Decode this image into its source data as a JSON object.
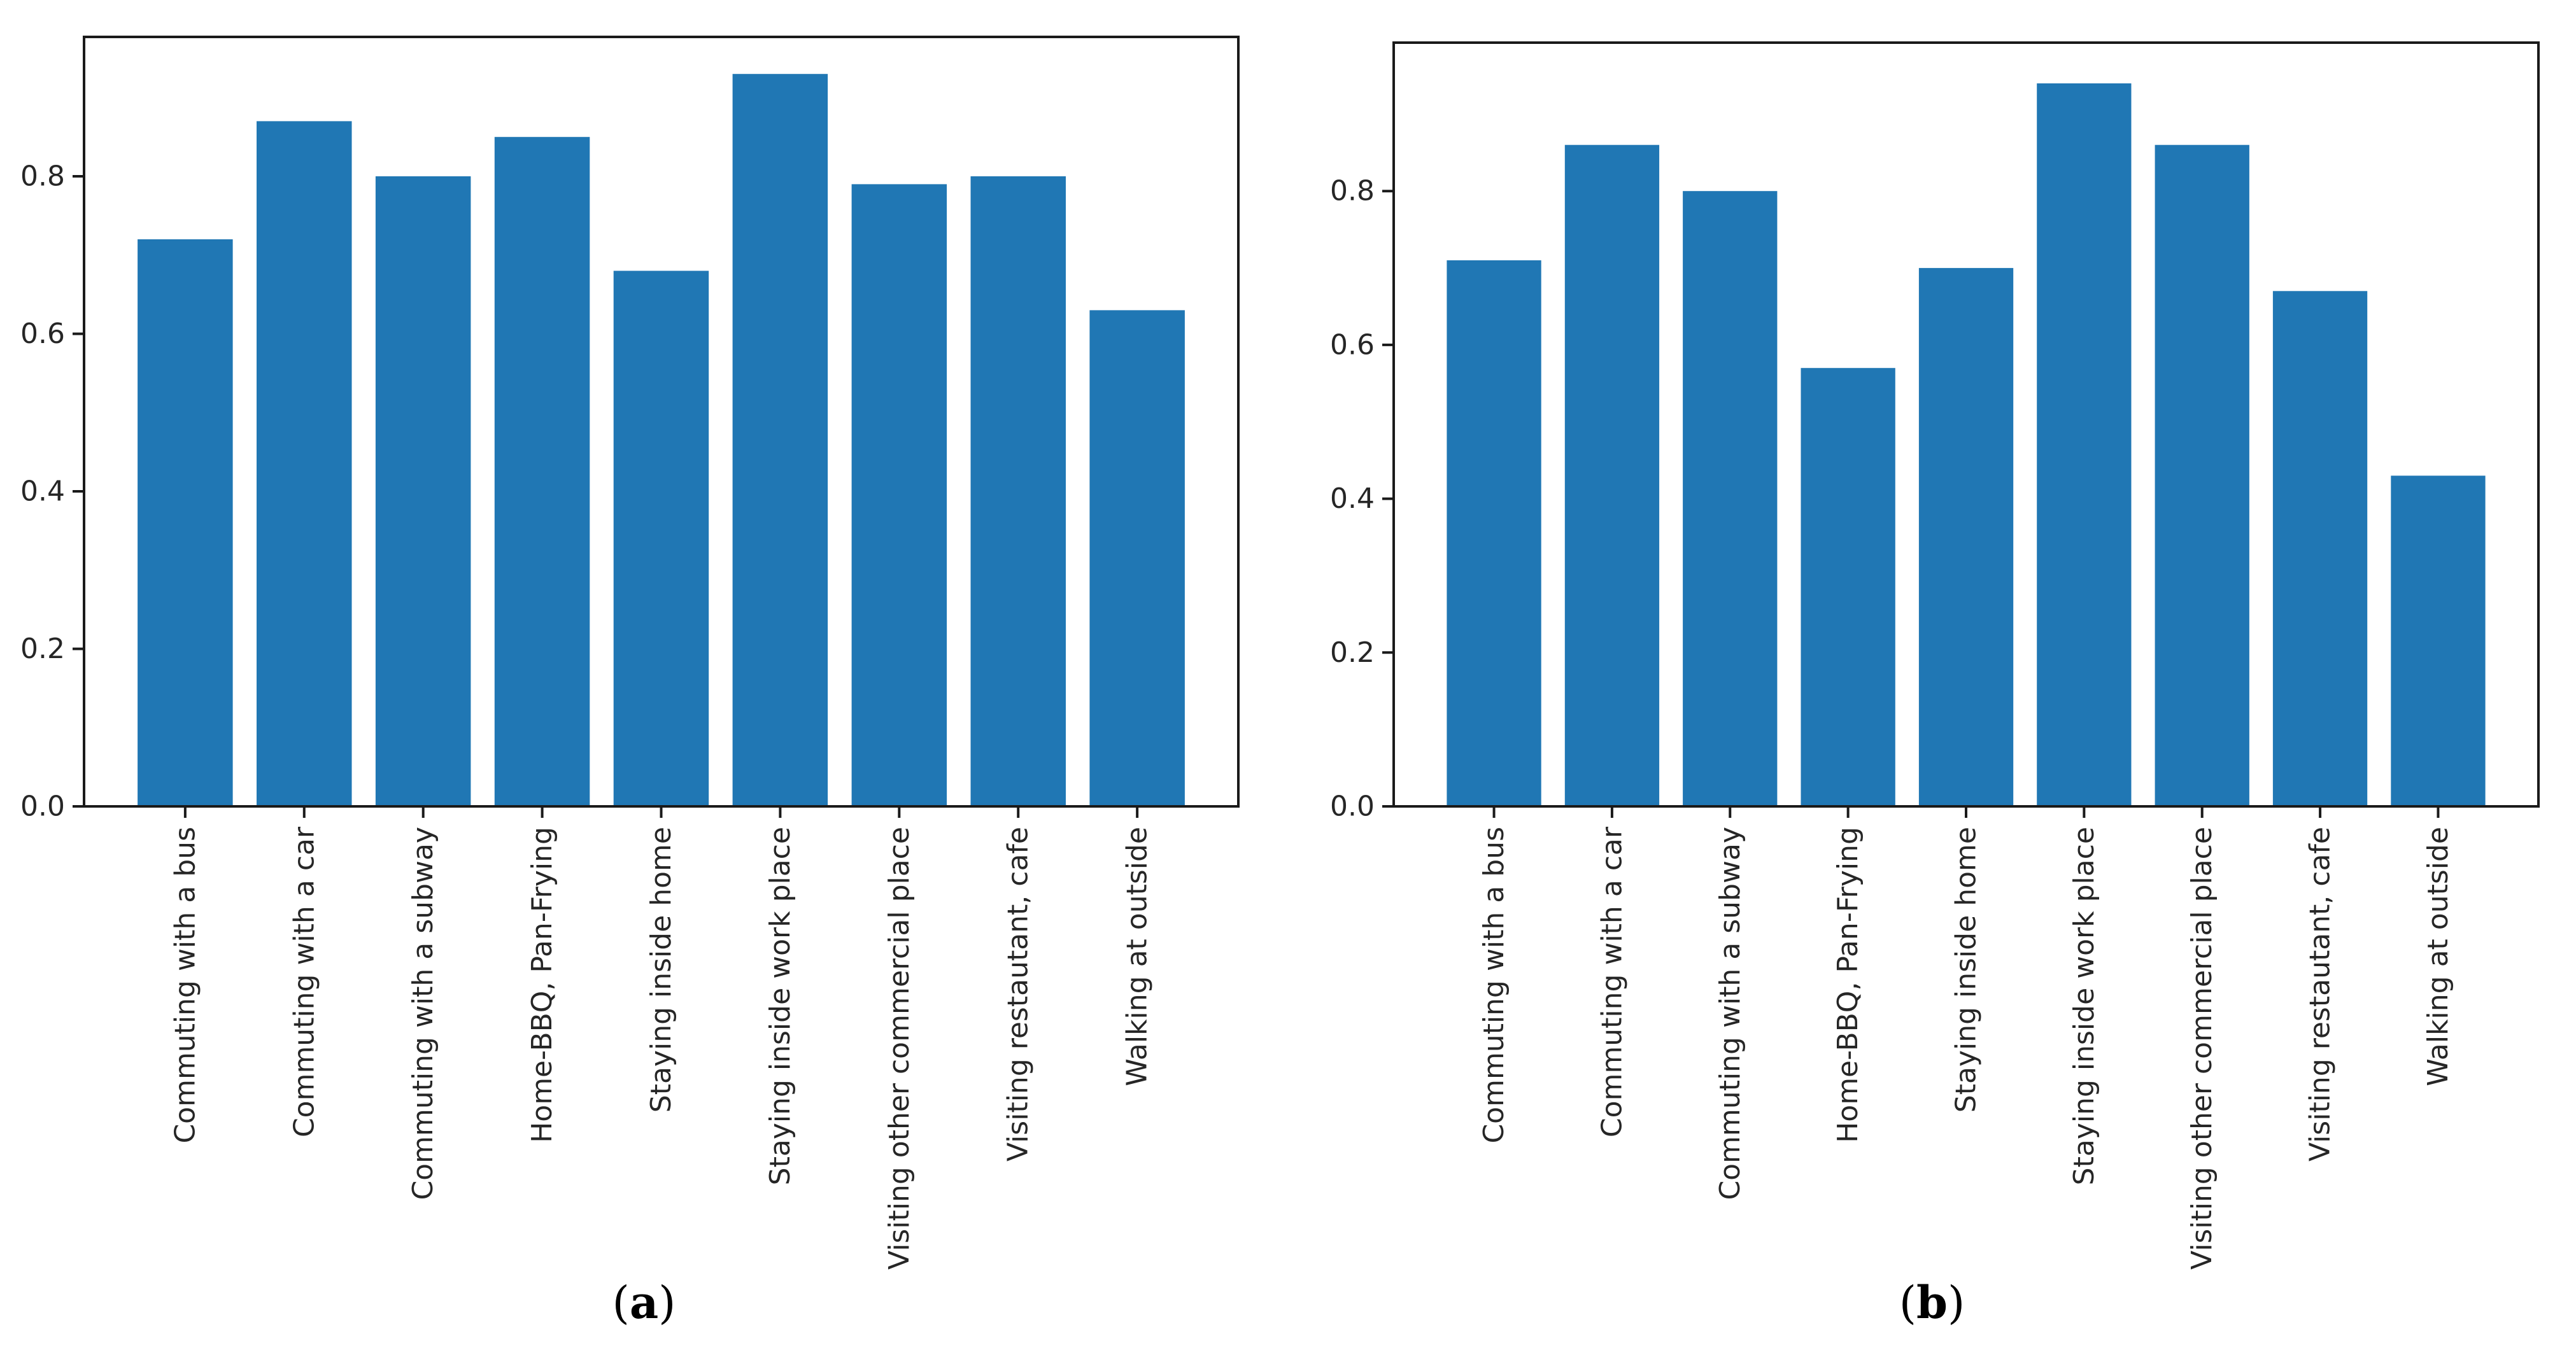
{
  "figure": {
    "background": "#ffffff",
    "panels": [
      "a",
      "b"
    ]
  },
  "colors": {
    "bar": "#2077b4",
    "axis": "#1a1a1a",
    "tick_text": "#262626",
    "background": "#ffffff"
  },
  "captions": {
    "a": {
      "open": "(",
      "letter": "a",
      "close": ")"
    },
    "b": {
      "open": "(",
      "letter": "b",
      "close": ")"
    }
  },
  "chart_data": [
    {
      "panel": "a",
      "type": "bar",
      "title": "",
      "xlabel": "",
      "ylabel": "",
      "categories": [
        "Commuting with a bus",
        "Commuting with a car",
        "Commuting with a subway",
        "Home-BBQ, Pan-Frying",
        "Staying inside home",
        "Staying inside work place",
        "Visiting other commercial place",
        "Visiting restautant, cafe",
        "Walking at outside"
      ],
      "values": [
        0.72,
        0.87,
        0.8,
        0.85,
        0.68,
        0.93,
        0.79,
        0.8,
        0.63
      ],
      "yticks": [
        0,
        0.2,
        0.4,
        0.6,
        0.8
      ],
      "ytick_labels": [
        "0.0",
        "0.2",
        "0.4",
        "0.6",
        "0.8"
      ],
      "ylim": [
        0,
        0.977
      ],
      "bar_color": "#2077b4",
      "grid": false,
      "legend": null,
      "xtick_rotation_deg": 90
    },
    {
      "panel": "b",
      "type": "bar",
      "title": "",
      "xlabel": "",
      "ylabel": "",
      "categories": [
        "Commuting with a bus",
        "Commuting with a car",
        "Commuting with a subway",
        "Home-BBQ, Pan-Frying",
        "Staying inside home",
        "Staying inside work place",
        "Visiting other commercial place",
        "Visiting restautant, cafe",
        "Walking at outside"
      ],
      "values": [
        0.71,
        0.86,
        0.8,
        0.57,
        0.7,
        0.94,
        0.86,
        0.67,
        0.43
      ],
      "yticks": [
        0,
        0.2,
        0.4,
        0.6,
        0.8
      ],
      "ytick_labels": [
        "0.0",
        "0.2",
        "0.4",
        "0.6",
        "0.8"
      ],
      "ylim": [
        0,
        0.993
      ],
      "bar_color": "#2077b4",
      "grid": false,
      "legend": null,
      "xtick_rotation_deg": 90
    }
  ]
}
